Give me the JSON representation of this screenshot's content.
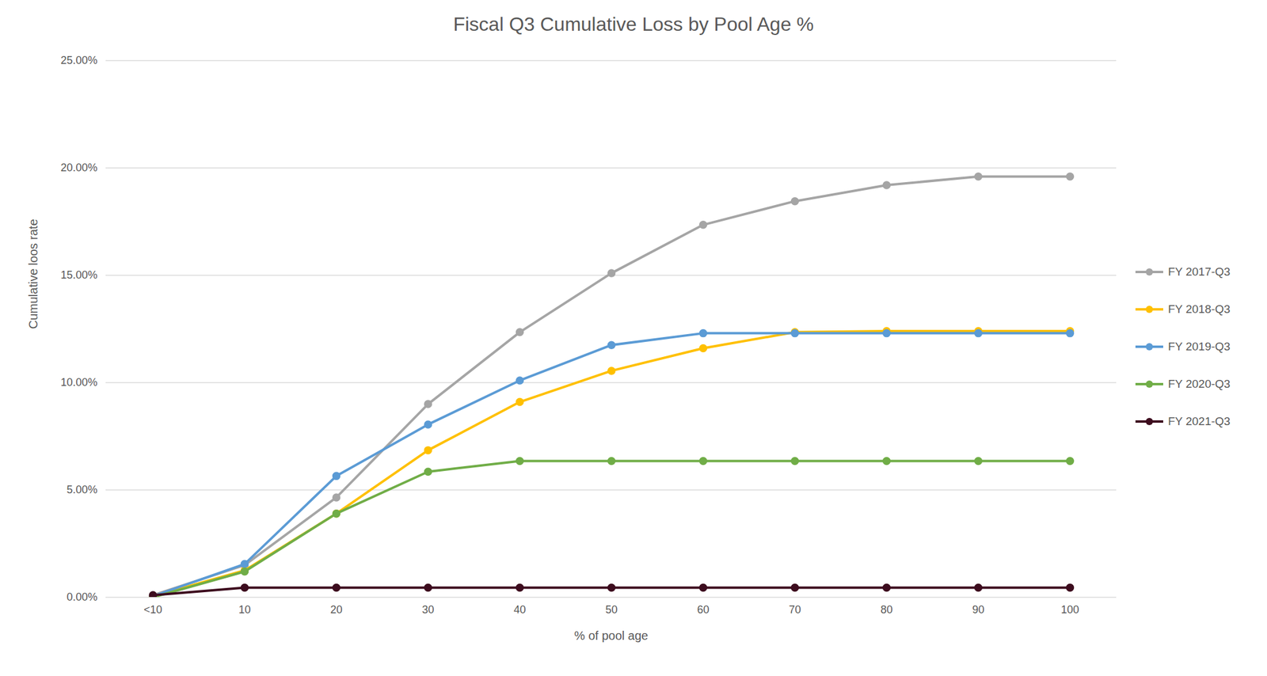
{
  "chart_data": {
    "type": "line",
    "title": "Fiscal Q3 Cumulative Loss by Pool Age %",
    "x_label": "% of pool age",
    "y_label": "Cumulative loos rate",
    "categories": [
      "<10",
      "10",
      "20",
      "30",
      "40",
      "50",
      "60",
      "70",
      "80",
      "90",
      "100"
    ],
    "series": [
      {
        "name": "FY 2017-Q3",
        "color": "#a5a5a5",
        "marker": "circle",
        "values": [
          0.1,
          1.5,
          4.65,
          9.0,
          12.35,
          15.1,
          17.35,
          18.45,
          19.2,
          19.6,
          19.6
        ]
      },
      {
        "name": "FY 2018-Q3",
        "color": "#ffc000",
        "marker": "circle",
        "values": [
          0.05,
          1.25,
          3.9,
          6.85,
          9.1,
          10.55,
          11.6,
          12.35,
          12.4,
          12.4,
          12.4
        ]
      },
      {
        "name": "FY 2019-Q3",
        "color": "#5b9bd5",
        "marker": "circle",
        "values": [
          0.05,
          1.55,
          5.65,
          8.05,
          10.1,
          11.75,
          12.3,
          12.3,
          12.3,
          12.3,
          12.3
        ]
      },
      {
        "name": "FY 2020-Q3",
        "color": "#70ad47",
        "marker": "circle",
        "values": [
          0.0,
          1.2,
          3.9,
          5.85,
          6.35,
          6.35,
          6.35,
          6.35,
          6.35,
          6.35,
          6.35
        ]
      },
      {
        "name": "FY 2021-Q3",
        "color": "#3d0c1e",
        "marker": "circle",
        "values": [
          0.1,
          0.45,
          0.45,
          0.45,
          0.45,
          0.45,
          0.45,
          0.45,
          0.45,
          0.45,
          0.45
        ]
      }
    ],
    "ylim": [
      0,
      25
    ],
    "yticks": [
      {
        "value": 0,
        "label": "0.00%"
      },
      {
        "value": 5,
        "label": "5.00%"
      },
      {
        "value": 10,
        "label": "10.00%"
      },
      {
        "value": 15,
        "label": "15.00%"
      },
      {
        "value": 20,
        "label": "20.00%"
      },
      {
        "value": 25,
        "label": "25.00%"
      }
    ],
    "grid": true,
    "legend": "right"
  }
}
